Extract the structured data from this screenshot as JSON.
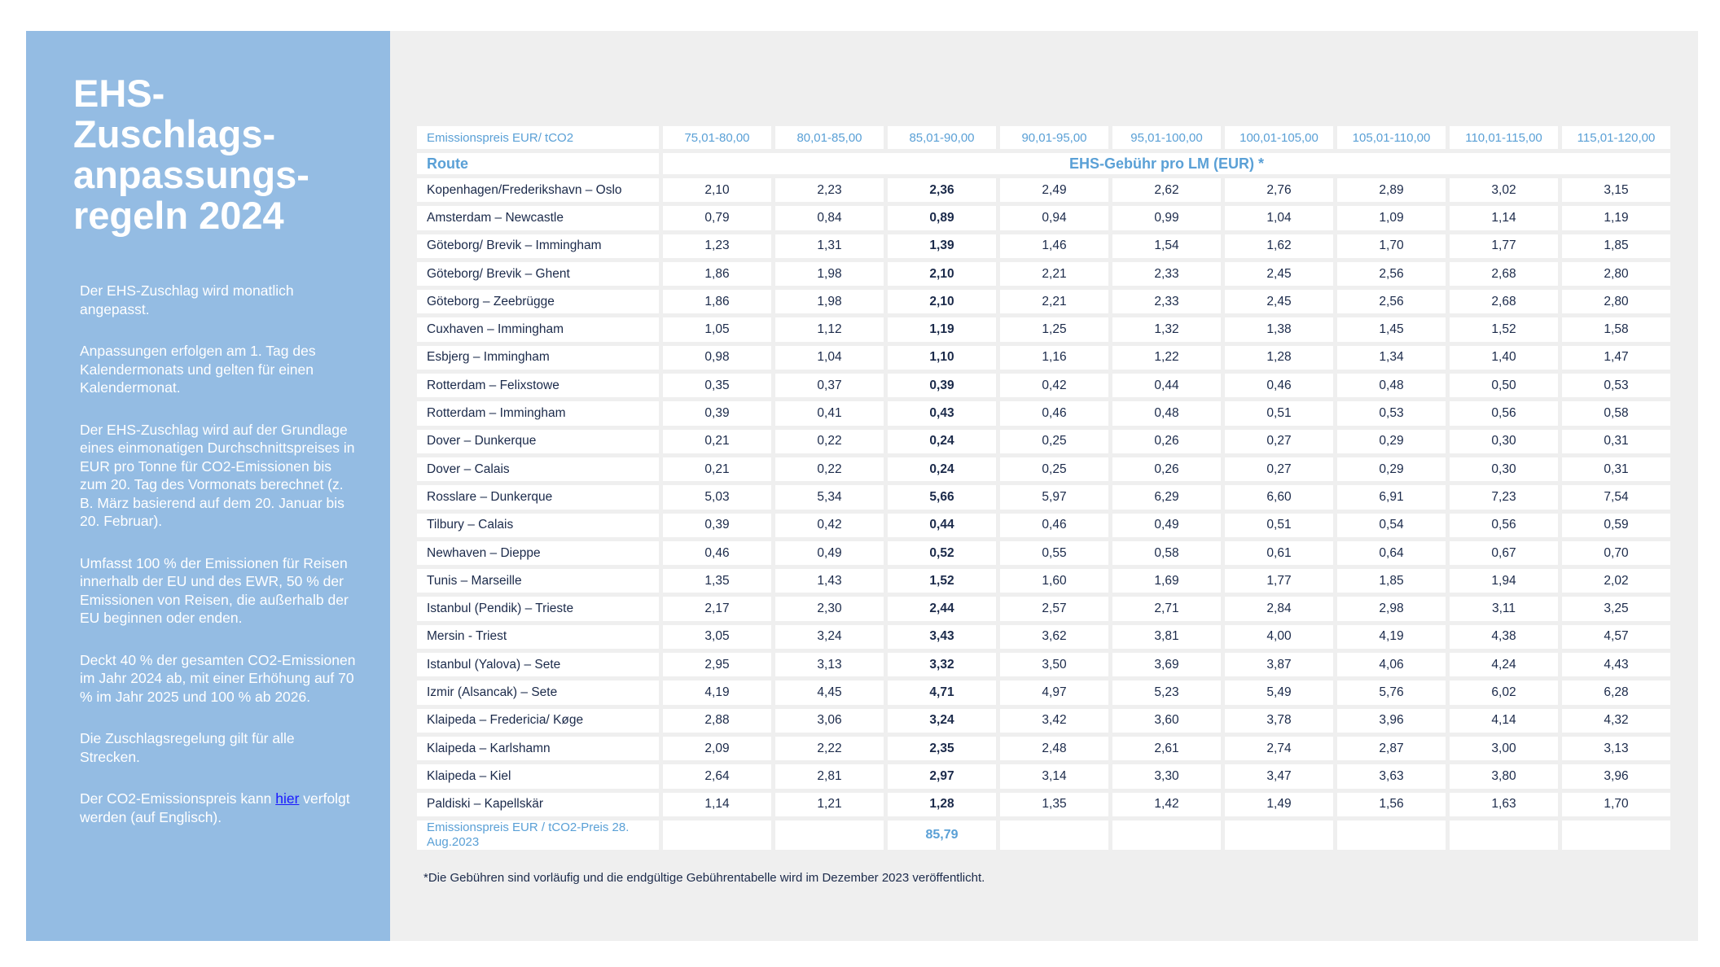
{
  "sidebar": {
    "title": "EHS-Zuschlags-anpassungs-regeln 2024",
    "paragraphs": [
      "Der EHS-Zuschlag wird monatlich angepasst.",
      "Anpassungen erfolgen am 1. Tag des Kalendermonats und gelten für einen Kalendermonat.",
      "Der EHS-Zuschlag wird auf der Grundlage eines einmonatigen Durchschnittspreises in EUR pro Tonne für CO2-Emissionen bis zum 20. Tag des Vormonats berechnet (z. B. März basierend auf dem 20. Januar bis 20. Februar).",
      "Umfasst 100 % der Emissionen für Reisen innerhalb der EU und des EWR, 50 % der Emissionen von Reisen, die außerhalb der EU beginnen oder enden.",
      "Deckt 40 % der gesamten CO2-Emissionen im Jahr 2024 ab, mit einer Erhöhung auf 70 % im Jahr 2025 und 100 % ab 2026.",
      "Die Zuschlagsregelung gilt für alle Strecken."
    ],
    "last_pre": "Der CO2-Emissionspreis kann ",
    "last_link": "hier",
    "last_post": " verfolgt werden (auf Englisch)."
  },
  "table": {
    "header_label": "Emissionspreis EUR/ tCO2",
    "price_ranges": [
      "75,01-80,00",
      "80,01-85,00",
      "85,01-90,00",
      "90,01-95,00",
      "95,01-100,00",
      "100,01-105,00",
      "105,01-110,00",
      "110,01-115,00",
      "115,01-120,00"
    ],
    "route_label": "Route",
    "fee_label": "EHS-Gebühr pro LM (EUR) *",
    "highlight_column": 2,
    "rows": [
      [
        "Kopenhagen/Frederikshavn – Oslo",
        "2,10",
        "2,23",
        "2,36",
        "2,49",
        "2,62",
        "2,76",
        "2,89",
        "3,02",
        "3,15"
      ],
      [
        "Amsterdam – Newcastle",
        "0,79",
        "0,84",
        "0,89",
        "0,94",
        "0,99",
        "1,04",
        "1,09",
        "1,14",
        "1,19"
      ],
      [
        "Göteborg/ Brevik – Immingham",
        "1,23",
        "1,31",
        "1,39",
        "1,46",
        "1,54",
        "1,62",
        "1,70",
        "1,77",
        "1,85"
      ],
      [
        "Göteborg/ Brevik – Ghent",
        "1,86",
        "1,98",
        "2,10",
        "2,21",
        "2,33",
        "2,45",
        "2,56",
        "2,68",
        "2,80"
      ],
      [
        "Göteborg – Zeebrügge",
        "1,86",
        "1,98",
        "2,10",
        "2,21",
        "2,33",
        "2,45",
        "2,56",
        "2,68",
        "2,80"
      ],
      [
        "Cuxhaven – Immingham",
        "1,05",
        "1,12",
        "1,19",
        "1,25",
        "1,32",
        "1,38",
        "1,45",
        "1,52",
        "1,58"
      ],
      [
        "Esbjerg – Immingham",
        "0,98",
        "1,04",
        "1,10",
        "1,16",
        "1,22",
        "1,28",
        "1,34",
        "1,40",
        "1,47"
      ],
      [
        "Rotterdam – Felixstowe",
        "0,35",
        "0,37",
        "0,39",
        "0,42",
        "0,44",
        "0,46",
        "0,48",
        "0,50",
        "0,53"
      ],
      [
        "Rotterdam – Immingham",
        "0,39",
        "0,41",
        "0,43",
        "0,46",
        "0,48",
        "0,51",
        "0,53",
        "0,56",
        "0,58"
      ],
      [
        "Dover – Dunkerque",
        "0,21",
        "0,22",
        "0,24",
        "0,25",
        "0,26",
        "0,27",
        "0,29",
        "0,30",
        "0,31"
      ],
      [
        "Dover – Calais",
        "0,21",
        "0,22",
        "0,24",
        "0,25",
        "0,26",
        "0,27",
        "0,29",
        "0,30",
        "0,31"
      ],
      [
        "Rosslare – Dunkerque",
        "5,03",
        "5,34",
        "5,66",
        "5,97",
        "6,29",
        "6,60",
        "6,91",
        "7,23",
        "7,54"
      ],
      [
        "Tilbury – Calais",
        "0,39",
        "0,42",
        "0,44",
        "0,46",
        "0,49",
        "0,51",
        "0,54",
        "0,56",
        "0,59"
      ],
      [
        "Newhaven – Dieppe",
        "0,46",
        "0,49",
        "0,52",
        "0,55",
        "0,58",
        "0,61",
        "0,64",
        "0,67",
        "0,70"
      ],
      [
        "Tunis – Marseille",
        "1,35",
        "1,43",
        "1,52",
        "1,60",
        "1,69",
        "1,77",
        "1,85",
        "1,94",
        "2,02"
      ],
      [
        "Istanbul (Pendik) – Trieste",
        "2,17",
        "2,30",
        "2,44",
        "2,57",
        "2,71",
        "2,84",
        "2,98",
        "3,11",
        "3,25"
      ],
      [
        "Mersin - Triest",
        "3,05",
        "3,24",
        "3,43",
        "3,62",
        "3,81",
        "4,00",
        "4,19",
        "4,38",
        "4,57"
      ],
      [
        "Istanbul (Yalova) – Sete",
        "2,95",
        "3,13",
        "3,32",
        "3,50",
        "3,69",
        "3,87",
        "4,06",
        "4,24",
        "4,43"
      ],
      [
        "Izmir (Alsancak) – Sete",
        "4,19",
        "4,45",
        "4,71",
        "4,97",
        "5,23",
        "5,49",
        "5,76",
        "6,02",
        "6,28"
      ],
      [
        "Klaipeda – Fredericia/ Køge",
        "2,88",
        "3,06",
        "3,24",
        "3,42",
        "3,60",
        "3,78",
        "3,96",
        "4,14",
        "4,32"
      ],
      [
        "Klaipeda – Karlshamn",
        "2,09",
        "2,22",
        "2,35",
        "2,48",
        "2,61",
        "2,74",
        "2,87",
        "3,00",
        "3,13"
      ],
      [
        "Klaipeda – Kiel",
        "2,64",
        "2,81",
        "2,97",
        "3,14",
        "3,30",
        "3,47",
        "3,63",
        "3,80",
        "3,96"
      ],
      [
        "Paldiski – Kapellskär",
        "1,14",
        "1,21",
        "1,28",
        "1,35",
        "1,42",
        "1,49",
        "1,56",
        "1,63",
        "1,70"
      ]
    ],
    "footer_label": "Emissionspreis EUR / tCO2-Preis 28. Aug.2023",
    "footer_value": "85,79"
  },
  "note": "*Die Gebühren sind vorläufig und die endgültige Gebührentabelle wird im Dezember 2023 veröffentlicht.",
  "colors": {
    "sidebar": "#94bce3",
    "header_text": "#5aa0d6",
    "body_text": "#1b2a4a",
    "panel": "#efefef"
  }
}
